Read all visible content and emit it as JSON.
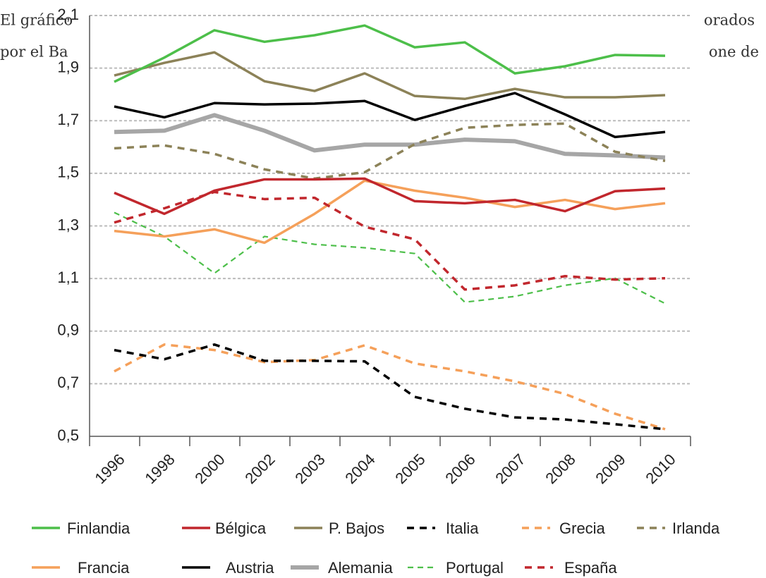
{
  "document": {
    "fragments": [
      "El gráfico",
      "orados",
      "por el Ba",
      "one de"
    ]
  },
  "chart_data": {
    "type": "line",
    "categories": [
      "1996",
      "1998",
      "2000",
      "2002",
      "2003",
      "2004",
      "2005",
      "2006",
      "2007",
      "2008",
      "2009",
      "2010"
    ],
    "ylim": [
      0.5,
      2.1
    ],
    "yticks": [
      {
        "value": 0.5,
        "label": "0,5"
      },
      {
        "value": 0.7,
        "label": "0,7"
      },
      {
        "value": 0.9,
        "label": "0,9"
      },
      {
        "value": 1.1,
        "label": "1,1"
      },
      {
        "value": 1.3,
        "label": "1,3"
      },
      {
        "value": 1.5,
        "label": "1,5"
      },
      {
        "value": 1.7,
        "label": "1,7"
      },
      {
        "value": 1.9,
        "label": "1,9"
      },
      {
        "value": 2.1,
        "label": "2,1"
      }
    ],
    "grid": true,
    "series": [
      {
        "name": "Finlandia",
        "color": "#4dbf4a",
        "style": "solid",
        "values": [
          1.848,
          1.94,
          2.044,
          2.0,
          2.025,
          2.062,
          1.979,
          1.998,
          1.88,
          1.907,
          1.95,
          1.947
        ]
      },
      {
        "name": "Bélgica",
        "color": "#c1272d",
        "style": "solid",
        "values": [
          1.426,
          1.346,
          1.434,
          1.477,
          1.477,
          1.48,
          1.394,
          1.386,
          1.399,
          1.356,
          1.432,
          1.442
        ]
      },
      {
        "name": "P. Bajos",
        "color": "#8c8258",
        "style": "solid",
        "values": [
          1.872,
          1.92,
          1.96,
          1.85,
          1.813,
          1.88,
          1.794,
          1.783,
          1.821,
          1.789,
          1.789,
          1.797
        ]
      },
      {
        "name": "Italia",
        "color": "#000000",
        "style": "dashed",
        "values": [
          0.828,
          0.793,
          0.849,
          0.787,
          0.787,
          0.785,
          0.65,
          0.605,
          0.572,
          0.564,
          0.546,
          0.527
        ]
      },
      {
        "name": "Grecia",
        "color": "#f5a05a",
        "style": "dashed",
        "values": [
          0.747,
          0.849,
          0.828,
          0.782,
          0.79,
          0.846,
          0.777,
          0.747,
          0.709,
          0.661,
          0.586,
          0.527
        ]
      },
      {
        "name": "Irlanda",
        "color": "#8c8258",
        "style": "dashed",
        "values": [
          1.595,
          1.606,
          1.574,
          1.515,
          1.48,
          1.504,
          1.611,
          1.673,
          1.684,
          1.689,
          1.582,
          1.547
        ]
      },
      {
        "name": "Francia",
        "color": "#f5a05a",
        "style": "solid",
        "values": [
          1.281,
          1.26,
          1.287,
          1.236,
          1.346,
          1.472,
          1.434,
          1.407,
          1.372,
          1.399,
          1.364,
          1.386
        ]
      },
      {
        "name": "Austria",
        "color": "#000000",
        "style": "solid",
        "values": [
          1.754,
          1.713,
          1.767,
          1.762,
          1.765,
          1.775,
          1.703,
          1.756,
          1.805,
          1.724,
          1.638,
          1.657
        ]
      },
      {
        "name": "Alemania",
        "color": "#a6a6a6",
        "style": "thick",
        "values": [
          1.657,
          1.662,
          1.721,
          1.662,
          1.587,
          1.609,
          1.609,
          1.628,
          1.622,
          1.574,
          1.568,
          1.56
        ]
      },
      {
        "name": "Portugal",
        "color": "#4dbf4a",
        "style": "thin-dashed",
        "values": [
          1.351,
          1.26,
          1.12,
          1.26,
          1.23,
          1.217,
          1.195,
          1.01,
          1.032,
          1.074,
          1.101,
          1.005
        ]
      },
      {
        "name": "España",
        "color": "#c1272d",
        "style": "dashed",
        "values": [
          1.313,
          1.367,
          1.429,
          1.402,
          1.407,
          1.297,
          1.249,
          1.058,
          1.074,
          1.109,
          1.096,
          1.101
        ]
      }
    ]
  }
}
